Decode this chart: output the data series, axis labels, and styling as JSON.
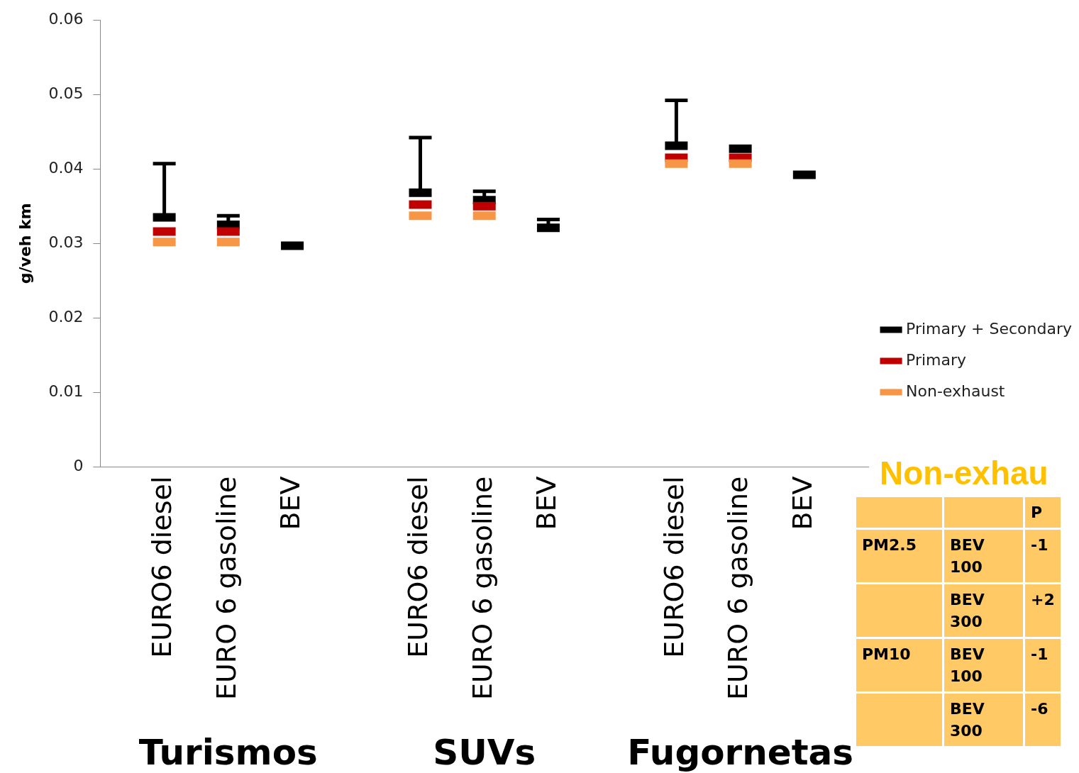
{
  "chart_data": [
    {
      "type": "scatter",
      "ylabel": "g/veh km",
      "categories": [
        null,
        "EURO6 diesel",
        "EURO 6 gasoline",
        "BEV",
        null,
        "EURO6 diesel",
        "EURO 6 gasoline",
        "BEV",
        null,
        "EURO6 diesel",
        "EURO 6 gasoline",
        "BEV",
        null
      ],
      "series": [
        {
          "name": "Primary + Secondary",
          "color": "#000000",
          "values": [
            null,
            0.0335,
            0.0325,
            0.0297,
            null,
            0.0368,
            0.0358,
            0.0321,
            null,
            0.0431,
            0.0427,
            0.0392,
            null
          ],
          "errors": [
            null,
            [
              0.0335,
              0.0407
            ],
            [
              0.0325,
              0.0337
            ],
            null,
            null,
            [
              0.0368,
              0.0442
            ],
            [
              0.0358,
              0.037
            ],
            [
              0.0321,
              0.0332
            ],
            null,
            [
              0.0431,
              0.0492
            ],
            null,
            null,
            null
          ]
        },
        {
          "name": "Primary",
          "color": "#c00000",
          "values": [
            null,
            0.0316,
            0.0316,
            null,
            null,
            0.0352,
            0.035,
            null,
            null,
            0.0415,
            0.0415,
            null,
            null
          ]
        },
        {
          "name": "Non-exhaust",
          "color": "#f79646",
          "values": [
            null,
            0.0302,
            0.0302,
            null,
            null,
            0.0337,
            0.0337,
            null,
            null,
            0.0407,
            0.0407,
            null,
            null
          ]
        }
      ],
      "ylim": [
        0,
        0.06
      ],
      "yticks": [
        0,
        0.01,
        0.02,
        0.03,
        0.04,
        0.05,
        0.06
      ],
      "legend": "right",
      "grid": false,
      "annotations": [
        "Turismos",
        "SUVs",
        "Fugornetas"
      ]
    },
    {
      "type": "other",
      "title": "Non-exhau",
      "annotations": [
        "P",
        "PM2.5",
        "BEV 100",
        "-1",
        "BEV 300",
        "+2",
        "PM10",
        "BEV 100",
        "-1",
        "BEV 300",
        "-6"
      ]
    }
  ]
}
